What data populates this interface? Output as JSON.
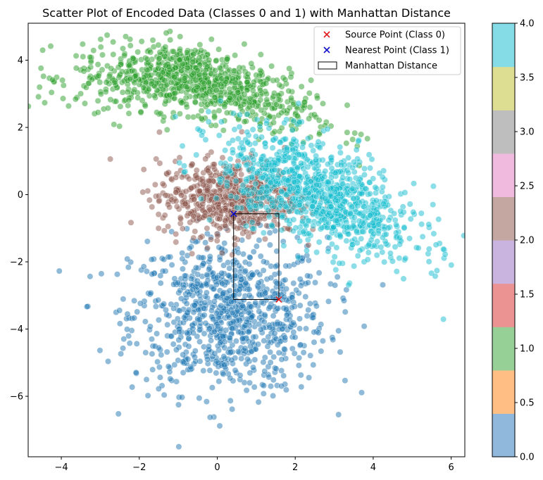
{
  "chart_data": {
    "type": "scatter",
    "title": "Scatter Plot of Encoded Data (Classes 0 and 1) with Manhattan Distance",
    "xlabel": "",
    "ylabel": "",
    "xlim": [
      -4.85,
      6.35
    ],
    "ylim": [
      -7.8,
      5.1
    ],
    "x_ticks": [
      -4,
      -2,
      0,
      2,
      4,
      6
    ],
    "y_ticks": [
      -6,
      -4,
      -2,
      0,
      2,
      4
    ],
    "x_tick_labels": [
      "−4",
      "−2",
      "0",
      "2",
      "4",
      "6"
    ],
    "y_tick_labels": [
      "−6",
      "−4",
      "−2",
      "0",
      "2",
      "4"
    ],
    "grid": false,
    "legend_position": "top-right",
    "legend": [
      {
        "label": "Source Point (Class 0)",
        "marker": "x",
        "color": "#e41a1c"
      },
      {
        "label": "Nearest Point (Class 1)",
        "marker": "x",
        "color": "#1010cc"
      },
      {
        "label": "Manhattan Distance",
        "marker": "rect",
        "color": "#000000"
      }
    ],
    "clusters": [
      {
        "label_value": 0,
        "color": "#1f77b4",
        "center": [
          0.3,
          -3.6
        ],
        "spread": [
          1.25,
          1.15
        ],
        "count": 900
      },
      {
        "label_value": 1,
        "color": "#2ca02c",
        "center": [
          -0.6,
          3.5
        ],
        "spread": [
          1.5,
          0.5
        ],
        "count": 900
      },
      {
        "label_value": 2,
        "color": "#8c564b",
        "center": [
          0.3,
          -0.1
        ],
        "spread": [
          0.9,
          0.55
        ],
        "count": 650
      },
      {
        "label_value": 4,
        "color": "#17becf",
        "center": [
          2.6,
          0.0
        ],
        "spread": [
          1.25,
          0.75
        ],
        "count": 1000
      }
    ],
    "source_point": {
      "x": 1.58,
      "y": -3.12
    },
    "nearest_point": {
      "x": 0.42,
      "y": -0.57
    },
    "manhattan_rect": {
      "x0": 0.42,
      "y0": -3.12,
      "x1": 1.58,
      "y1": -0.57
    },
    "colorbar": {
      "min": 0.0,
      "max": 4.0,
      "ticks": [
        0.0,
        0.5,
        1.0,
        1.5,
        2.0,
        2.5,
        3.0,
        3.5,
        4.0
      ],
      "tick_labels": [
        "0.0",
        "0.5",
        "1.0",
        "1.5",
        "2.0",
        "2.5",
        "3.0",
        "3.5",
        "4.0"
      ],
      "colors": [
        "#8fb8dc",
        "#ffbe84",
        "#96d096",
        "#eb9393",
        "#c8b4de",
        "#c5a7a1",
        "#f0bade",
        "#bebebe",
        "#dede92",
        "#86dce6"
      ]
    }
  }
}
